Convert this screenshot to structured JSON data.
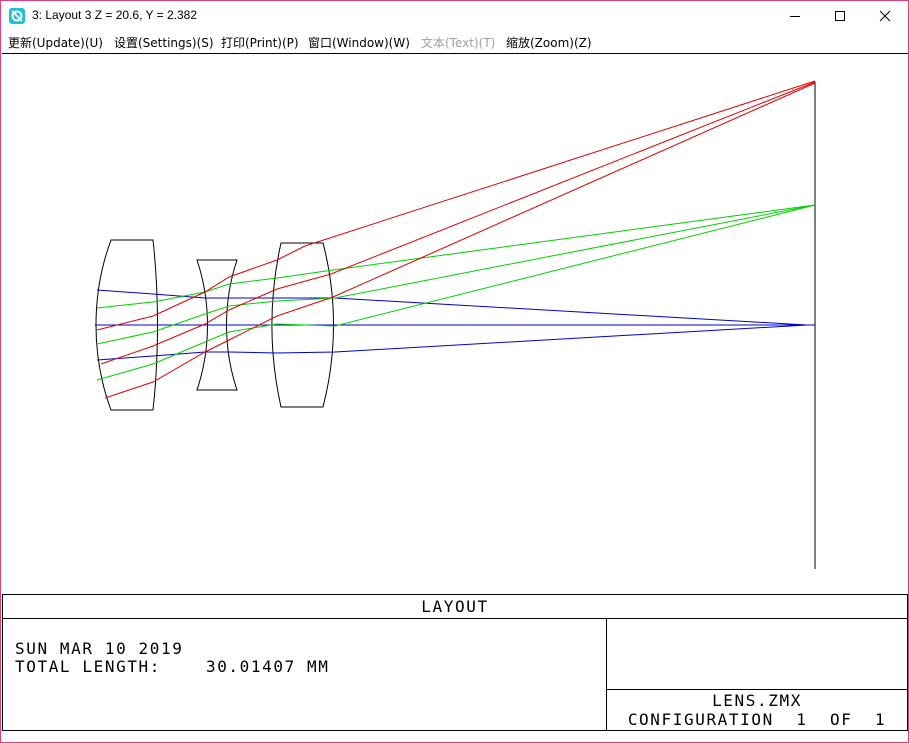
{
  "window": {
    "title": "3: Layout 3 Z = 20.6, Y = 2.382",
    "controls": [
      "minimize",
      "maximize",
      "close"
    ]
  },
  "menu": [
    {
      "label": "更新(Update)(U)",
      "enabled": true
    },
    {
      "label": "设置(Settings)(S)",
      "enabled": true
    },
    {
      "label": "打印(Print)(P)",
      "enabled": true
    },
    {
      "label": "窗口(Window)(W)",
      "enabled": true
    },
    {
      "label": "文本(Text)(T)",
      "enabled": false
    },
    {
      "label": "缩放(Zoom)(Z)",
      "enabled": true
    }
  ],
  "layout": {
    "plot_title": "LAYOUT",
    "date": "SUN MAR 10 2019",
    "total_length": "TOTAL LENGTH:    30.01407 MM",
    "file": "LENS.ZMX",
    "configuration": "CONFIGURATION  1  OF  1"
  },
  "colors": {
    "field1": "#0000d0",
    "field2": "#00d000",
    "field3": "#e00000",
    "lens": "#000000",
    "border": "#e0407a"
  }
}
